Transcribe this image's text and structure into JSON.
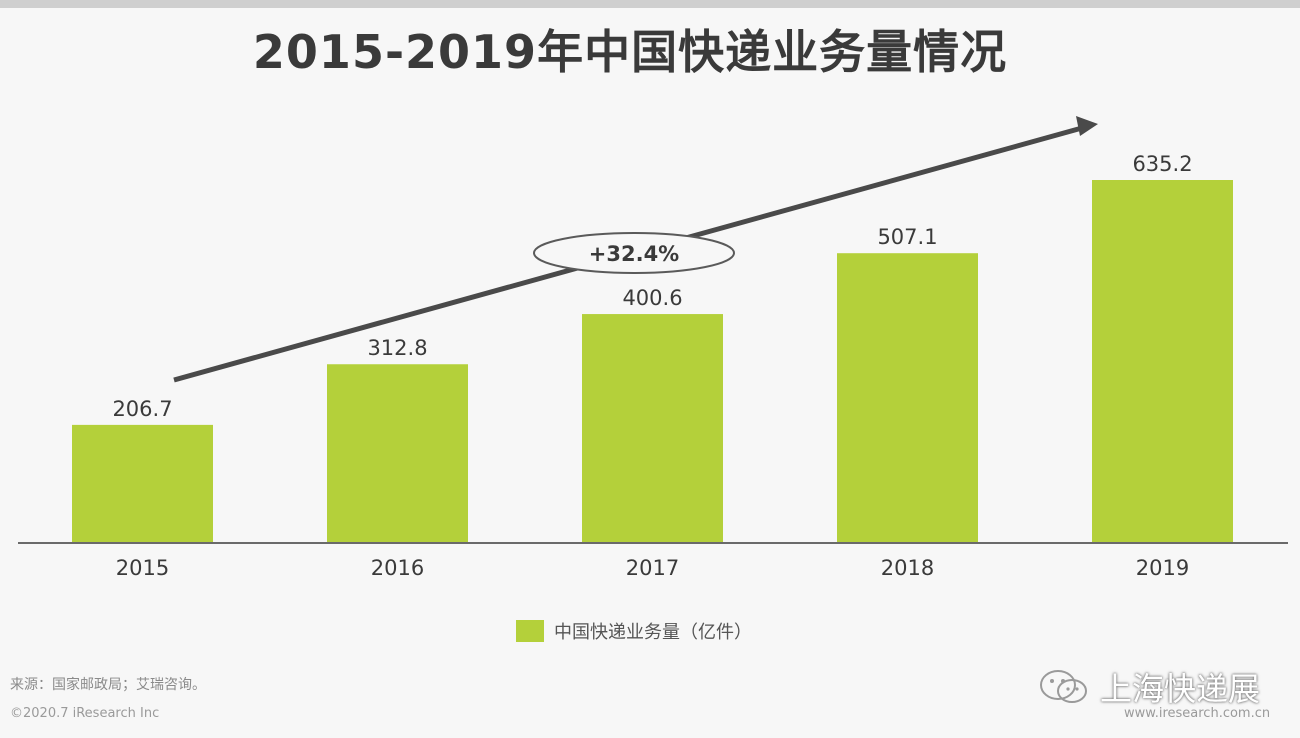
{
  "title": "2015-2019年中国快递业务量情况",
  "growth_label": "+32.4%",
  "legend": {
    "label": "中国快递业务量（亿件）"
  },
  "footer": {
    "source": "来源：国家邮政局；艾瑞咨询。",
    "copyright": "©2020.7 iResearch Inc",
    "site": "www.iresearch.com.cn"
  },
  "watermark": {
    "text": "上海快递展",
    "icon": "wechat-logo-icon"
  },
  "colors": {
    "bar": "#b4d03a",
    "text": "#3a3a3a",
    "arrow": "#4a4a4a",
    "axis": "#6a6a6a"
  },
  "chart_data": {
    "type": "bar",
    "categories": [
      "2015",
      "2016",
      "2017",
      "2018",
      "2019"
    ],
    "series": [
      {
        "name": "中国快递业务量（亿件）",
        "values": [
          206.7,
          312.8,
          400.6,
          507.1,
          635.2
        ]
      }
    ],
    "data_labels": [
      "206.7",
      "312.8",
      "400.6",
      "507.1",
      "635.2"
    ],
    "annotation": "+32.4%",
    "ylim": [
      0,
      650
    ],
    "grid": false,
    "legend_position": "bottom"
  }
}
